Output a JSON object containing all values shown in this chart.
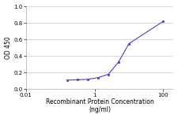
{
  "x": [
    0.16,
    0.32,
    0.63,
    1.25,
    2.5,
    5,
    10,
    100
  ],
  "y": [
    0.11,
    0.115,
    0.12,
    0.14,
    0.18,
    0.33,
    0.55,
    0.82
  ],
  "line_color": "#4444bb",
  "marker_color": "#4444bb",
  "marker_style": "s",
  "marker_size": 2.0,
  "line_width": 0.8,
  "xlabel_line1": "Recombinant Protein Concentration",
  "xlabel_line2": "(ng/ml)",
  "ylabel": "OD 450",
  "xlim": [
    0.01,
    200
  ],
  "ylim": [
    0,
    1
  ],
  "yticks": [
    0,
    0.2,
    0.4,
    0.6,
    0.8,
    1
  ],
  "xtick_labels": [
    "0.01",
    "1",
    "100"
  ],
  "xtick_values": [
    0.01,
    1,
    100
  ],
  "background_color": "#ffffff",
  "grid_color": "#cccccc",
  "axis_fontsize": 5.5,
  "tick_fontsize": 5.0
}
